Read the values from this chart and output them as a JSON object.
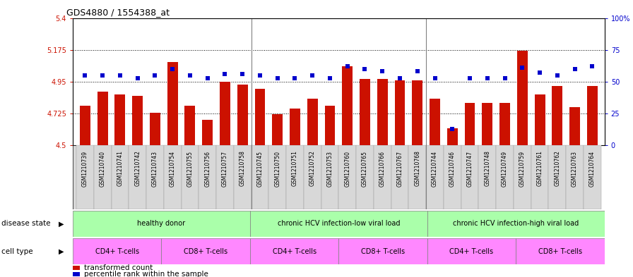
{
  "title": "GDS4880 / 1554388_at",
  "samples": [
    "GSM1210739",
    "GSM1210740",
    "GSM1210741",
    "GSM1210742",
    "GSM1210743",
    "GSM1210754",
    "GSM1210755",
    "GSM1210756",
    "GSM1210757",
    "GSM1210758",
    "GSM1210745",
    "GSM1210750",
    "GSM1210751",
    "GSM1210752",
    "GSM1210753",
    "GSM1210760",
    "GSM1210765",
    "GSM1210766",
    "GSM1210767",
    "GSM1210768",
    "GSM1210744",
    "GSM1210746",
    "GSM1210747",
    "GSM1210748",
    "GSM1210749",
    "GSM1210759",
    "GSM1210761",
    "GSM1210762",
    "GSM1210763",
    "GSM1210764"
  ],
  "bar_values": [
    4.78,
    4.88,
    4.86,
    4.85,
    4.73,
    5.09,
    4.78,
    4.68,
    4.95,
    4.93,
    4.9,
    4.72,
    4.76,
    4.83,
    4.78,
    5.06,
    4.97,
    4.97,
    4.96,
    4.96,
    4.83,
    4.62,
    4.8,
    4.8,
    4.8,
    5.17,
    4.86,
    4.92,
    4.77,
    4.92
  ],
  "percentile_values": [
    55,
    55,
    55,
    53,
    55,
    60,
    55,
    53,
    56,
    56,
    55,
    53,
    53,
    55,
    53,
    62,
    60,
    58,
    53,
    58,
    53,
    13,
    53,
    53,
    53,
    61,
    57,
    55,
    60,
    62
  ],
  "ylim_left": [
    4.5,
    5.4
  ],
  "yticks_left": [
    4.5,
    4.725,
    4.95,
    5.175,
    5.4
  ],
  "ytick_labels_left": [
    "4.5",
    "4.725",
    "4.95",
    "5.175",
    "5.4"
  ],
  "ylim_right": [
    0,
    100
  ],
  "yticks_right": [
    0,
    25,
    50,
    75,
    100
  ],
  "ytick_labels_right": [
    "0",
    "25",
    "50",
    "75",
    "100%"
  ],
  "hlines": [
    4.725,
    4.95,
    5.175
  ],
  "bar_color": "#CC1100",
  "dot_color": "#0000CC",
  "background_color": "#FFFFFF",
  "xticklabel_bg": "#D8D8D8",
  "disease_state_groups": [
    {
      "text": "healthy donor",
      "start": 0,
      "end": 10
    },
    {
      "text": "chronic HCV infection-low viral load",
      "start": 10,
      "end": 20
    },
    {
      "text": "chronic HCV infection-high viral load",
      "start": 20,
      "end": 30
    }
  ],
  "cell_type_groups": [
    {
      "text": "CD4+ T-cells",
      "start": 0,
      "end": 5
    },
    {
      "text": "CD8+ T-cells",
      "start": 5,
      "end": 10
    },
    {
      "text": "CD4+ T-cells",
      "start": 10,
      "end": 15
    },
    {
      "text": "CD8+ T-cells",
      "start": 15,
      "end": 20
    },
    {
      "text": "CD4+ T-cells",
      "start": 20,
      "end": 25
    },
    {
      "text": "CD8+ T-cells",
      "start": 25,
      "end": 30
    }
  ],
  "disease_state_color": "#AAFFAA",
  "cell_type_color": "#FF88FF",
  "legend_bar_label": "transformed count",
  "legend_dot_label": "percentile rank within the sample",
  "disease_state_row_label": "disease state",
  "cell_type_row_label": "cell type",
  "group_separators": [
    9.5,
    19.5
  ]
}
